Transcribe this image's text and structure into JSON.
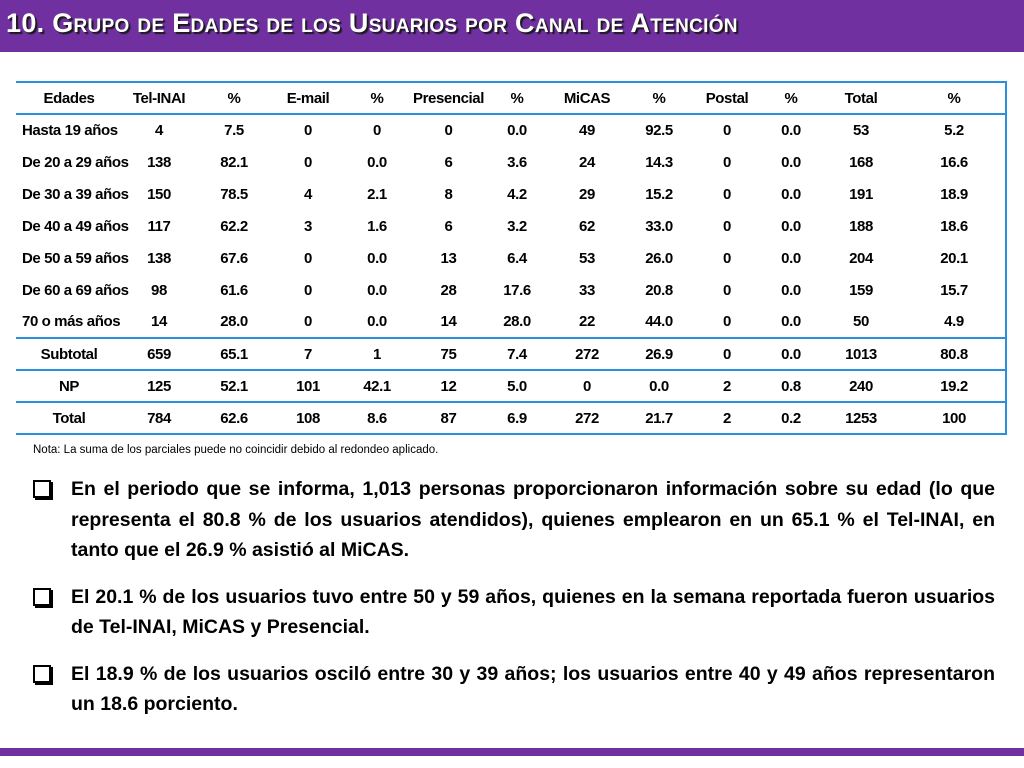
{
  "header": {
    "title": "10. Grupo de  Edades de los Usuarios por Canal de Atención",
    "bar_color": "#7030a0"
  },
  "table": {
    "columns": [
      "Edades",
      "Tel-INAI",
      "%",
      "E-mail",
      "%",
      "Presencial",
      "%",
      "MiCAS",
      "%",
      "Postal",
      "%",
      "Total",
      "%"
    ],
    "rows": [
      [
        "Hasta 19 años",
        "4",
        "7.5",
        "0",
        "0",
        "0",
        "0.0",
        "49",
        "92.5",
        "0",
        "0.0",
        "53",
        "5.2"
      ],
      [
        "De 20 a 29 años",
        "138",
        "82.1",
        "0",
        "0.0",
        "6",
        "3.6",
        "24",
        "14.3",
        "0",
        "0.0",
        "168",
        "16.6"
      ],
      [
        "De 30 a 39 años",
        "150",
        "78.5",
        "4",
        "2.1",
        "8",
        "4.2",
        "29",
        "15.2",
        "0",
        "0.0",
        "191",
        "18.9"
      ],
      [
        "De 40 a 49 años",
        "117",
        "62.2",
        "3",
        "1.6",
        "6",
        "3.2",
        "62",
        "33.0",
        "0",
        "0.0",
        "188",
        "18.6"
      ],
      [
        "De 50 a 59 años",
        "138",
        "67.6",
        "0",
        "0.0",
        "13",
        "6.4",
        "53",
        "26.0",
        "0",
        "0.0",
        "204",
        "20.1"
      ],
      [
        "De 60 a 69 años",
        "98",
        "61.6",
        "0",
        "0.0",
        "28",
        "17.6",
        "33",
        "20.8",
        "0",
        "0.0",
        "159",
        "15.7"
      ],
      [
        "70 o más años",
        "14",
        "28.0",
        "0",
        "0.0",
        "14",
        "28.0",
        "22",
        "44.0",
        "0",
        "0.0",
        "50",
        "4.9"
      ]
    ],
    "summary_rows": [
      [
        "Subtotal",
        "659",
        "65.1",
        "7",
        "1",
        "75",
        "7.4",
        "272",
        "26.9",
        "0",
        "0.0",
        "1013",
        "80.8"
      ],
      [
        "NP",
        "125",
        "52.1",
        "101",
        "42.1",
        "12",
        "5.0",
        "0",
        "0.0",
        "2",
        "0.8",
        "240",
        "19.2"
      ],
      [
        "Total",
        "784",
        "62.6",
        "108",
        "8.6",
        "87",
        "6.9",
        "272",
        "21.7",
        "2",
        "0.2",
        "1253",
        "100"
      ]
    ],
    "border_color": "#2a8fdc"
  },
  "note": "Nota: La suma de los parciales puede no coincidir debido al redondeo aplicado.",
  "bullets": [
    "En el periodo que se informa, 1,013 personas proporcionaron información sobre su edad (lo que representa el 80.8 % de los usuarios atendidos), quienes emplearon en un 65.1 % el Tel-INAI, en tanto que el 26.9 % asistió al MiCAS.",
    "El 20.1 % de los usuarios tuvo entre 50 y 59 años, quienes en la semana reportada fueron usuarios de Tel-INAI, MiCAS y Presencial.",
    "El 18.9 % de los usuarios osciló entre 30 y 39 años; los usuarios entre 40 y 49 años representaron un 18.6 porciento."
  ]
}
